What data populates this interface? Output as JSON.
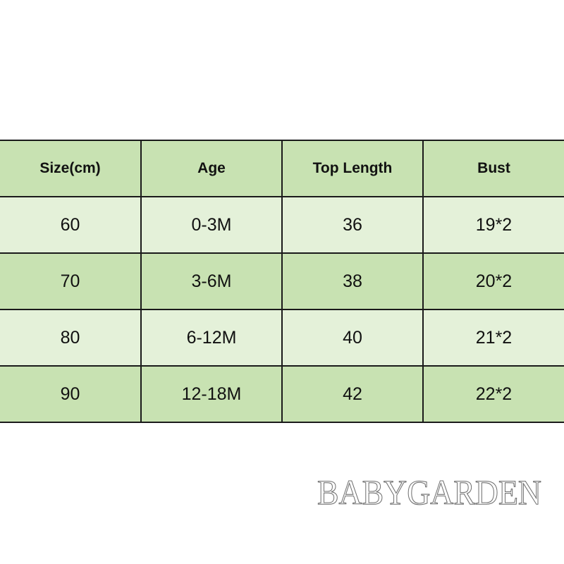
{
  "table": {
    "headers": [
      "Size(cm)",
      "Age",
      "Top Length",
      "Bust"
    ],
    "rows": [
      [
        "60",
        "0-3M",
        "36",
        "19*2"
      ],
      [
        "70",
        "3-6M",
        "38",
        "20*2"
      ],
      [
        "80",
        "6-12M",
        "40",
        "21*2"
      ],
      [
        "90",
        "12-18M",
        "42",
        "22*2"
      ]
    ],
    "colors": {
      "header_bg": "#c8e2b2",
      "row_light": "#e4f1d9",
      "row_dark": "#c8e2b2",
      "border": "#1a1a1a"
    }
  },
  "brand": {
    "watermark_text": "BABYGARDEN"
  }
}
